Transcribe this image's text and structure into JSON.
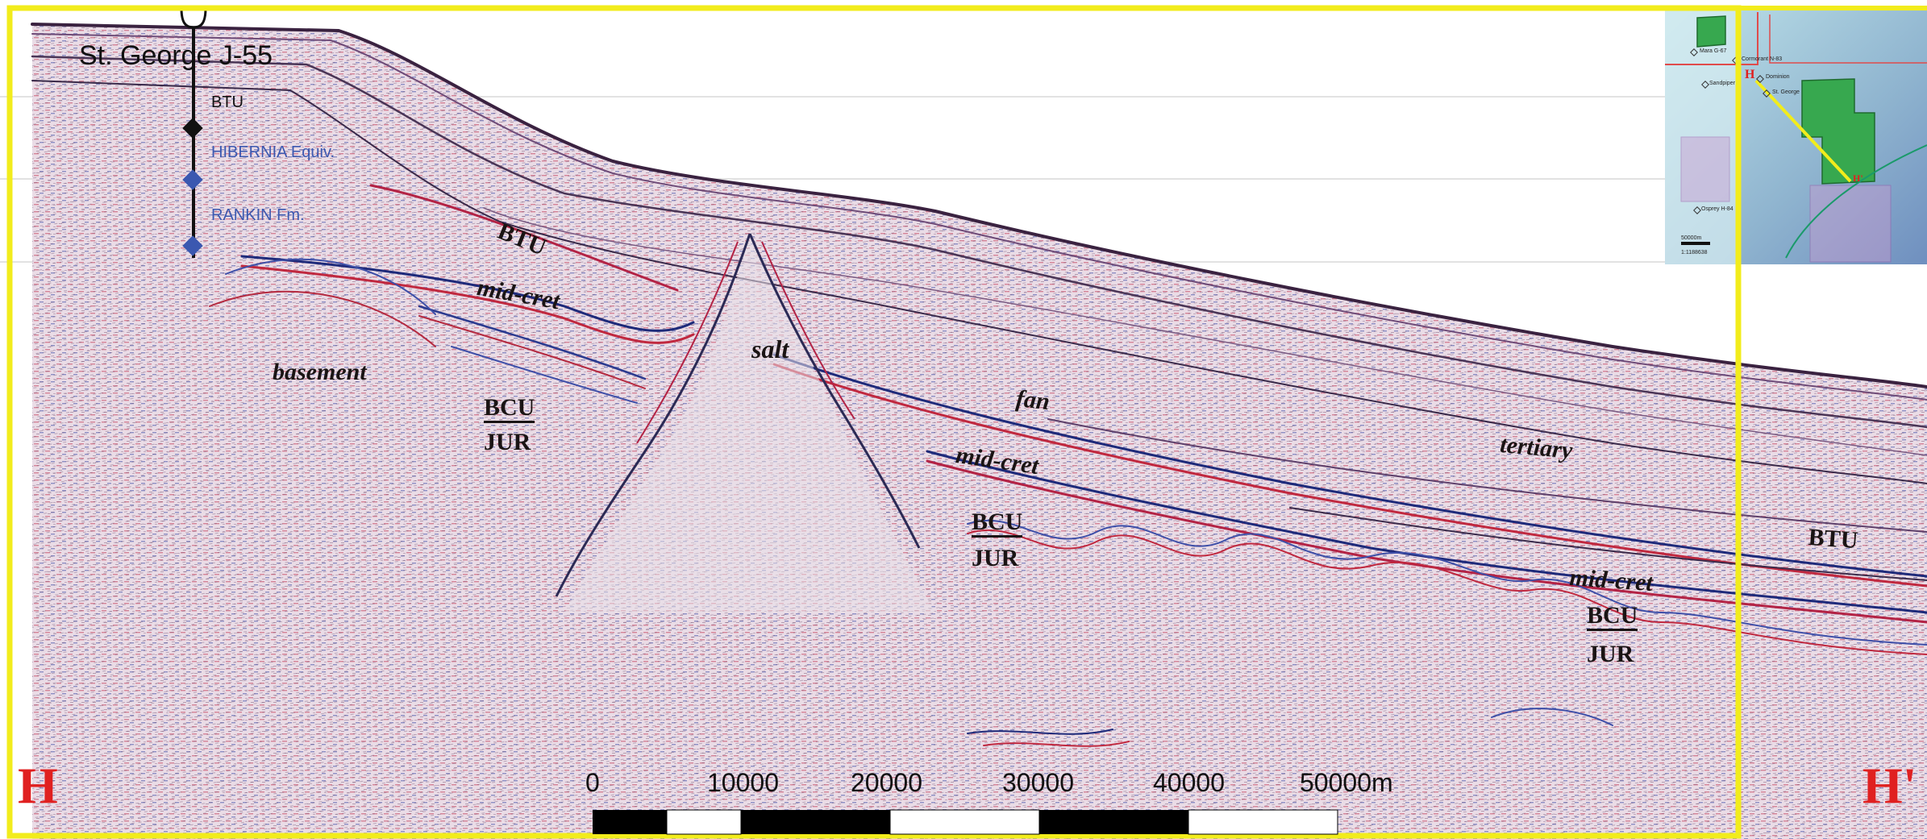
{
  "section": {
    "start_label": "H",
    "end_label": "H'"
  },
  "well": {
    "name": "St. George J-55",
    "markers": [
      "BTU",
      "HIBERNIA Equiv.",
      "RANKIN Fm."
    ]
  },
  "horizons": {
    "btu_1": "BTU",
    "midcret_1": "mid-cret",
    "basement": "basement",
    "bcu_1": "BCU",
    "jur_1": "JUR",
    "salt": "salt",
    "fan": "fan",
    "midcret_2": "mid-cret",
    "bcu_2": "BCU",
    "jur_2": "JUR",
    "tertiary": "tertiary",
    "btu_2": "BTU",
    "midcret_3": "mid-cret",
    "bcu_3": "BCU",
    "jur_3": "JUR"
  },
  "scale_bar": {
    "ticks": [
      "0",
      "10000",
      "20000",
      "30000",
      "40000",
      "50000m"
    ]
  },
  "inset_map": {
    "scale_text": "50000m",
    "ratio_text": "1:1188638",
    "line_start": "H",
    "line_end": "H'",
    "wells": [
      "Mara G-67",
      "Cormorant N-83",
      "Sandpiper",
      "Dominion",
      "St. George",
      "Osprey H-84"
    ]
  },
  "colors": {
    "frame": "#f2ec1c",
    "label_red": "#e02020",
    "marker_blue": "#3b58b0",
    "marker_black": "#111111",
    "license_green": "#37a84f"
  }
}
